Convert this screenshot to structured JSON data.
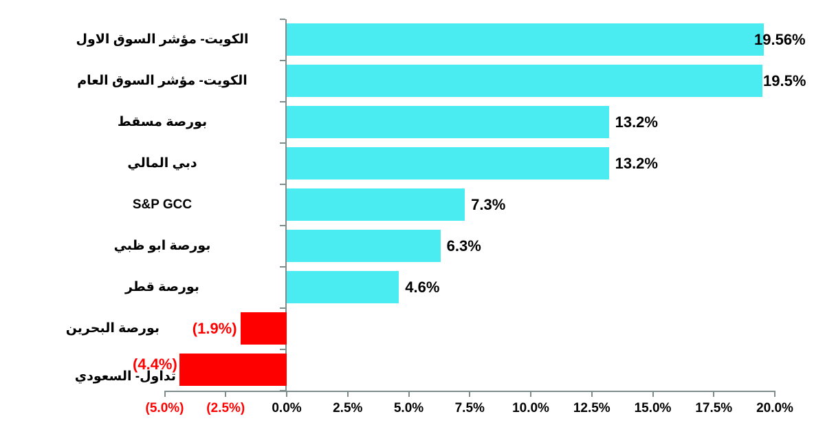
{
  "chart_data": {
    "type": "bar",
    "orientation": "horizontal",
    "title": "",
    "categories": [
      "الكويت- مؤشر السوق الاول",
      "الكويت- مؤشر السوق العام",
      "بورصة مسقط",
      "دبي المالي",
      "S&P GCC",
      "بورصة ابو ظبي",
      "بورصة قطر",
      "بورصة البحرين",
      "تداول- السعودي"
    ],
    "values": [
      19.56,
      19.5,
      13.2,
      13.2,
      7.3,
      6.3,
      4.6,
      -1.9,
      -4.4
    ],
    "value_labels": [
      "19.56%",
      "19.5%",
      "13.2%",
      "13.2%",
      "7.3%",
      "6.3%",
      "4.6%",
      "(1.9%)",
      "(4.4%)"
    ],
    "xlabel": "",
    "ylabel": "",
    "xlim": [
      -5,
      20
    ],
    "grid": false,
    "legend": false,
    "x_ticks": [
      {
        "value": -5.0,
        "label": "(5.0%)"
      },
      {
        "value": -2.5,
        "label": "(2.5%)"
      },
      {
        "value": 0.0,
        "label": "0.0%"
      },
      {
        "value": 2.5,
        "label": "2.5%"
      },
      {
        "value": 5.0,
        "label": "5.0%"
      },
      {
        "value": 7.5,
        "label": "7.5%"
      },
      {
        "value": 10.0,
        "label": "10.0%"
      },
      {
        "value": 12.5,
        "label": "12.5%"
      },
      {
        "value": 15.0,
        "label": "15.0%"
      },
      {
        "value": 17.5,
        "label": "17.5%"
      },
      {
        "value": 20.0,
        "label": "20.0%"
      }
    ],
    "colors": {
      "bar_positive": "#4AECF1",
      "bar_negative": "#FF0000",
      "label_positive": "#000000",
      "label_negative": "#FF0000",
      "tick_label_positive": "#000000",
      "tick_label_negative": "#FF0000",
      "axis_line": "#7D8B8B",
      "background": "#FFFFFF"
    }
  }
}
